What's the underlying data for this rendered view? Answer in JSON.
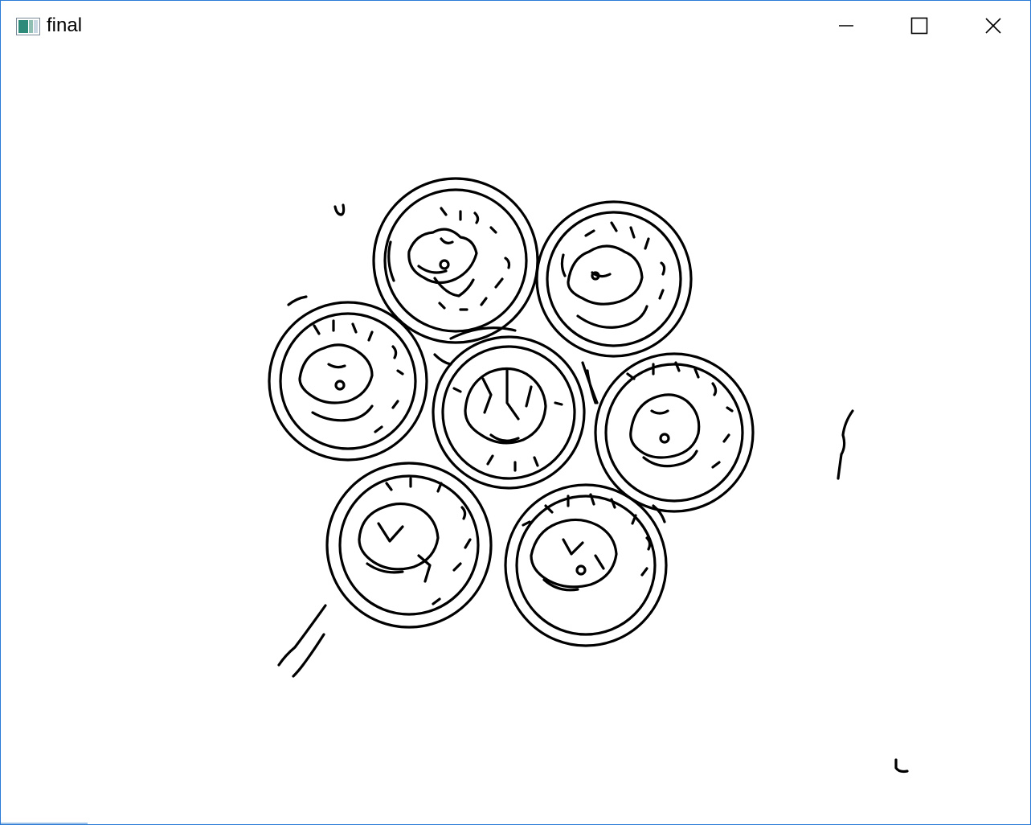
{
  "window": {
    "title": "final",
    "controls": {
      "minimize": "minimize",
      "maximize": "maximize",
      "close": "close"
    }
  },
  "icons": {
    "app": "app-icon",
    "minimize": "minimize-icon",
    "maximize": "maximize-icon",
    "close": "close-icon"
  },
  "colors": {
    "window_border": "#2b7bd6",
    "edge_lines": "#000000",
    "background": "#ffffff"
  }
}
